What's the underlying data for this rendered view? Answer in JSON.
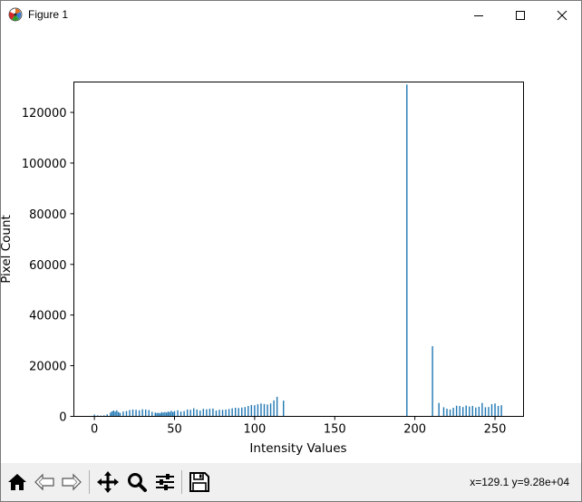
{
  "window": {
    "title": "Figure 1",
    "icon": "matplotlib-icon",
    "controls": [
      "minimize-icon",
      "maximize-icon",
      "close-icon"
    ]
  },
  "chart_data": {
    "type": "bar",
    "title": "",
    "xlabel": "Intensity Values",
    "ylabel": "Pixel Count",
    "xlim": [
      -12.8,
      267.8
    ],
    "ylim": [
      0,
      132000
    ],
    "xticks": [
      0,
      50,
      100,
      150,
      200,
      250
    ],
    "yticks": [
      0,
      20000,
      40000,
      60000,
      80000,
      100000,
      120000
    ],
    "xtick_labels": [
      "0",
      "50",
      "100",
      "150",
      "200",
      "250"
    ],
    "ytick_labels": [
      "0",
      "20000",
      "40000",
      "60000",
      "80000",
      "100000",
      "120000"
    ],
    "bar_color": "#1f77b4",
    "x": [
      0,
      2,
      4,
      6,
      8,
      10,
      11,
      12,
      13,
      14,
      15,
      16,
      18,
      20,
      22,
      24,
      26,
      28,
      30,
      32,
      34,
      36,
      38,
      39,
      40,
      41,
      42,
      43,
      44,
      45,
      46,
      47,
      48,
      49,
      50,
      52,
      54,
      56,
      58,
      60,
      62,
      64,
      66,
      68,
      70,
      72,
      74,
      76,
      78,
      80,
      82,
      84,
      86,
      88,
      90,
      92,
      94,
      96,
      98,
      100,
      102,
      104,
      106,
      108,
      110,
      112,
      114,
      118,
      195,
      211,
      215,
      218,
      220,
      222,
      224,
      226,
      228,
      230,
      232,
      234,
      236,
      238,
      240,
      242,
      244,
      246,
      248,
      250,
      252,
      254
    ],
    "values": [
      700,
      400,
      300,
      400,
      800,
      1500,
      2000,
      2300,
      1900,
      2400,
      1700,
      1400,
      1900,
      2100,
      2500,
      2700,
      2600,
      2400,
      2800,
      2700,
      2500,
      1800,
      1500,
      1300,
      1400,
      1200,
      1700,
      1500,
      1700,
      1500,
      1900,
      1700,
      2200,
      1700,
      2100,
      2400,
      1900,
      2100,
      2700,
      2600,
      3200,
      2700,
      2300,
      3000,
      2800,
      3000,
      3100,
      2300,
      2600,
      2600,
      2700,
      2900,
      3200,
      3400,
      3300,
      3500,
      3700,
      4100,
      4500,
      4400,
      4800,
      5100,
      4900,
      4700,
      5100,
      6300,
      7700,
      6200,
      131000,
      27700,
      5300,
      3600,
      3000,
      2700,
      3400,
      4200,
      4100,
      3700,
      4300,
      3900,
      4100,
      3500,
      3800,
      5300,
      3600,
      3700,
      4800,
      5100,
      4100,
      4400
    ]
  },
  "toolbar": {
    "tools": [
      "home-icon",
      "back-icon",
      "forward-icon",
      "pan-icon",
      "zoom-icon",
      "configure-subplots-icon",
      "save-icon"
    ],
    "coords_text": "x=129.1 y=9.28e+04"
  }
}
